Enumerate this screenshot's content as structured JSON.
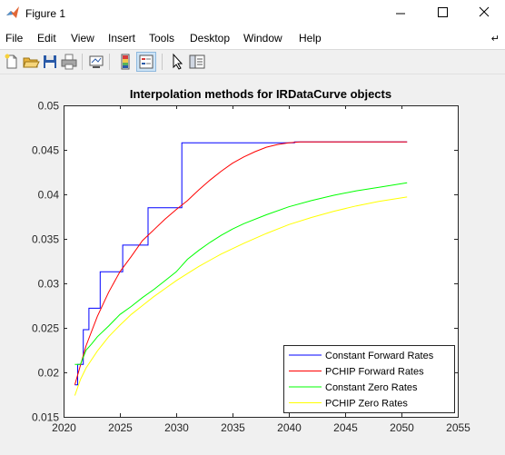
{
  "window": {
    "title": "Figure 1",
    "app_icon": "matlab-logo-icon",
    "controls": [
      "minimize-icon",
      "maximize-icon",
      "close-icon"
    ]
  },
  "menu": {
    "items": [
      "File",
      "Edit",
      "View",
      "Insert",
      "Tools",
      "Desktop",
      "Window",
      "Help"
    ],
    "overflow_icon": "dock-arrow-icon"
  },
  "toolbar": {
    "buttons": [
      {
        "icon": "new-figure-icon"
      },
      {
        "icon": "open-file-icon"
      },
      {
        "icon": "save-icon"
      },
      {
        "icon": "print-icon"
      },
      {
        "icon": "link-plot-icon"
      },
      {
        "icon": "insert-colorbar-icon"
      },
      {
        "icon": "insert-legend-icon",
        "pressed": true
      },
      {
        "icon": "edit-plot-arrow-icon"
      },
      {
        "icon": "property-inspector-icon"
      }
    ]
  },
  "colors": {
    "constant_forward": "#0000ff",
    "pchip_forward": "#ff0000",
    "constant_zero": "#00ff00",
    "pchip_zero": "#ffff00"
  },
  "chart_data": {
    "type": "line",
    "title": "Interpolation methods for IRDataCurve objects",
    "xlabel": "",
    "ylabel": "",
    "xlim": [
      2020,
      2055
    ],
    "ylim": [
      0.015,
      0.05
    ],
    "xticks": [
      "2020",
      "2025",
      "2030",
      "2035",
      "2040",
      "2045",
      "2050",
      "2055"
    ],
    "yticks": [
      "0.015",
      "0.02",
      "0.025",
      "0.03",
      "0.035",
      "0.04",
      "0.045",
      "0.05"
    ],
    "grid": false,
    "legend_position": "bottom-right",
    "series": [
      {
        "name": "Constant Forward Rates",
        "style": "step",
        "x": [
          2021.0,
          2021.25,
          2021.75,
          2022.25,
          2023.25,
          2025.25,
          2027.5,
          2030.5,
          2040.5,
          2050.5
        ],
        "y": [
          0.0186,
          0.0209,
          0.0248,
          0.0272,
          0.0313,
          0.0343,
          0.0385,
          0.0458,
          0.0459,
          0.0459
        ]
      },
      {
        "name": "PCHIP Forward Rates",
        "style": "line",
        "x": [
          2021.0,
          2022.0,
          2023.0,
          2024.0,
          2025.0,
          2026.0,
          2027.0,
          2028.0,
          2029.0,
          2030.0,
          2031.0,
          2032.0,
          2033.0,
          2034.0,
          2035.0,
          2036.0,
          2037.0,
          2038.0,
          2039.0,
          2040.0,
          2041.0,
          2042.0,
          2045.0,
          2050.5
        ],
        "y": [
          0.0186,
          0.023,
          0.0263,
          0.029,
          0.0313,
          0.033,
          0.0348,
          0.036,
          0.0372,
          0.0383,
          0.0393,
          0.0405,
          0.0416,
          0.0426,
          0.0435,
          0.0442,
          0.0448,
          0.0453,
          0.0456,
          0.0458,
          0.0459,
          0.0459,
          0.0459,
          0.0459
        ]
      },
      {
        "name": "Constant Zero Rates",
        "style": "line",
        "x": [
          2021.0,
          2021.5,
          2022.0,
          2022.5,
          2023.0,
          2024.0,
          2025.0,
          2026.0,
          2027.0,
          2028.0,
          2029.0,
          2030.0,
          2030.5,
          2031.0,
          2032.0,
          2033.0,
          2034.0,
          2035.0,
          2036.0,
          2038.0,
          2040.0,
          2042.0,
          2044.0,
          2046.0,
          2048.0,
          2050.5
        ],
        "y": [
          0.0209,
          0.0209,
          0.0225,
          0.0232,
          0.024,
          0.0252,
          0.0265,
          0.0274,
          0.0284,
          0.0293,
          0.0303,
          0.0313,
          0.032,
          0.0327,
          0.0337,
          0.0346,
          0.0354,
          0.0361,
          0.0367,
          0.0377,
          0.0386,
          0.0393,
          0.0399,
          0.0404,
          0.0408,
          0.0413
        ]
      },
      {
        "name": "PCHIP Zero Rates",
        "style": "line",
        "x": [
          2021.0,
          2021.5,
          2022.0,
          2023.0,
          2024.0,
          2025.0,
          2026.0,
          2027.0,
          2028.0,
          2029.0,
          2030.0,
          2031.0,
          2032.0,
          2033.0,
          2034.0,
          2035.0,
          2036.0,
          2038.0,
          2040.0,
          2042.0,
          2044.0,
          2046.0,
          2048.0,
          2050.5
        ],
        "y": [
          0.0174,
          0.0192,
          0.0205,
          0.0224,
          0.024,
          0.0253,
          0.0265,
          0.0275,
          0.0285,
          0.0294,
          0.0303,
          0.0311,
          0.0319,
          0.0326,
          0.0333,
          0.0339,
          0.0345,
          0.0356,
          0.0366,
          0.0374,
          0.0381,
          0.0387,
          0.0392,
          0.0397
        ]
      }
    ]
  }
}
